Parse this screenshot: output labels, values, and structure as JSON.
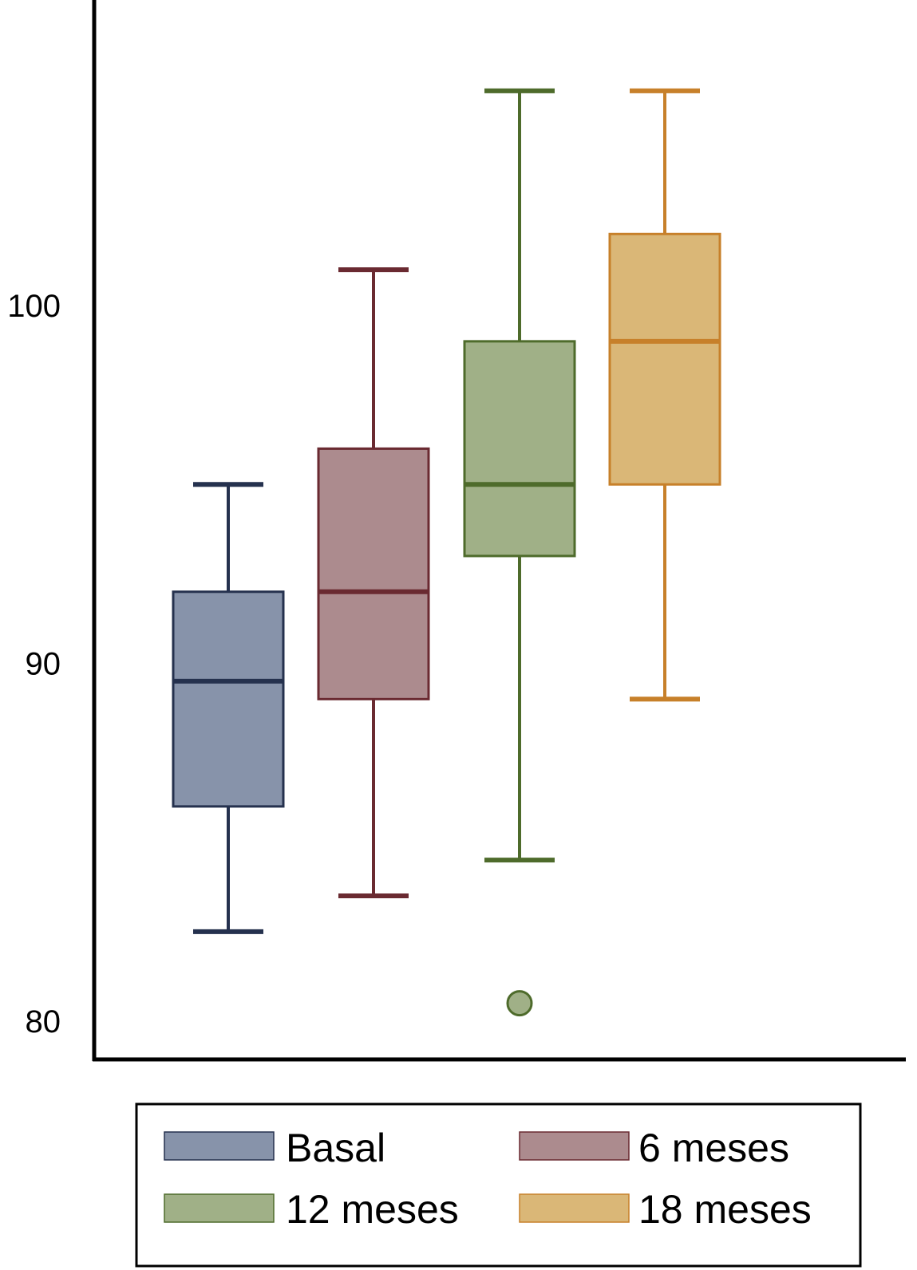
{
  "chart_data": {
    "type": "box",
    "title": "",
    "xlabel": "",
    "ylabel": "",
    "ylim": [
      80,
      109
    ],
    "yticks": [
      {
        "value": 80,
        "label": "80"
      },
      {
        "value": 90,
        "label": "90"
      },
      {
        "value": 100,
        "label": "100"
      }
    ],
    "legend_position": "bottom",
    "series": [
      {
        "name": "Basal",
        "color": "#8793aa",
        "edge": "#25314e",
        "whisker_low": 82.5,
        "q1": 86,
        "median": 89.5,
        "q3": 92,
        "whisker_high": 95,
        "outliers": []
      },
      {
        "name": "6 meses",
        "color": "#ac8b8e",
        "edge": "#6a2a31",
        "whisker_low": 83.5,
        "q1": 89,
        "median": 92,
        "q3": 96,
        "whisker_high": 101,
        "outliers": []
      },
      {
        "name": "12 meses",
        "color": "#a0b087",
        "edge": "#4e6b2b",
        "whisker_low": 84.5,
        "q1": 93,
        "median": 95,
        "q3": 99,
        "whisker_high": 106,
        "outliers": [
          80.5
        ]
      },
      {
        "name": "18 meses",
        "color": "#dab777",
        "edge": "#c7802a",
        "whisker_low": 89,
        "q1": 95,
        "median": 99,
        "q3": 102,
        "whisker_high": 106,
        "outliers": []
      }
    ]
  }
}
